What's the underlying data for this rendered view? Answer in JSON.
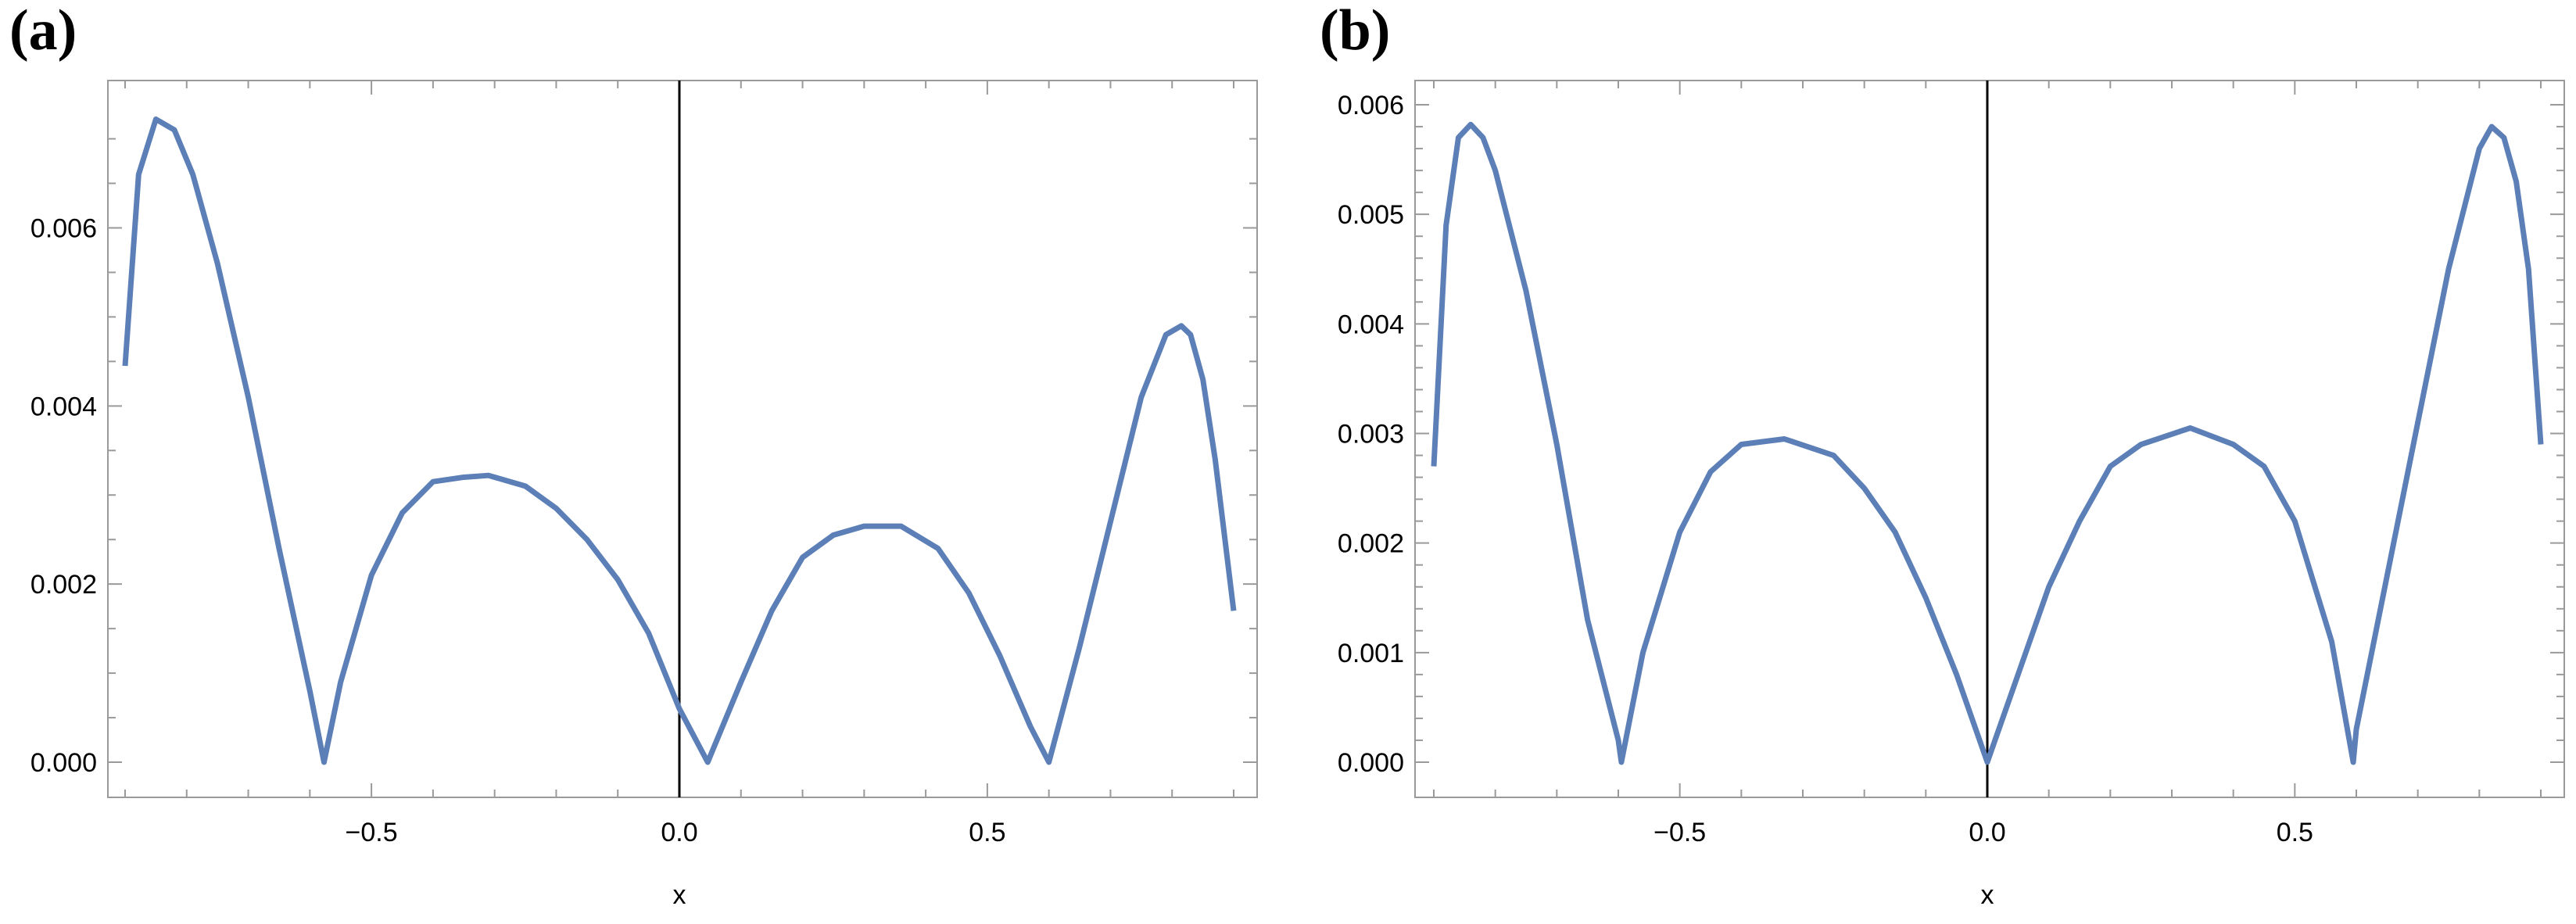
{
  "chart_data": [
    {
      "panel": "(a)",
      "type": "line",
      "xlabel": "x",
      "ylabel": "",
      "xlim": [
        -0.9,
        0.9
      ],
      "ylim": [
        0.0,
        0.0074
      ],
      "xticks": [
        -0.5,
        0.0,
        0.5
      ],
      "xtick_labels": [
        "−0.5",
        "0.0",
        "0.5"
      ],
      "yticks": [
        0.0,
        0.002,
        0.004,
        0.006
      ],
      "ytick_labels": [
        "0.000",
        "0.002",
        "0.004",
        "0.006"
      ],
      "grid": false,
      "color": "#5b7fb6",
      "series": [
        {
          "x": [
            -0.9,
            -0.878,
            -0.85,
            -0.82,
            -0.79,
            -0.75,
            -0.7,
            -0.65,
            -0.6,
            -0.577,
            -0.55,
            -0.5,
            -0.45,
            -0.4,
            -0.35,
            -0.31,
            -0.25,
            -0.2,
            -0.15,
            -0.1,
            -0.05,
            0.0,
            0.046,
            0.1,
            0.15,
            0.2,
            0.25,
            0.3,
            0.36,
            0.42,
            0.47,
            0.52,
            0.57,
            0.6,
            0.65,
            0.7,
            0.75,
            0.79,
            0.815,
            0.83,
            0.85,
            0.87,
            0.9
          ],
          "y": [
            0.00445,
            0.0066,
            0.00722,
            0.0071,
            0.0066,
            0.0056,
            0.0041,
            0.0024,
            0.0008,
            0.0,
            0.0009,
            0.0021,
            0.0028,
            0.00315,
            0.0032,
            0.00322,
            0.0031,
            0.00285,
            0.0025,
            0.00205,
            0.00145,
            0.0006,
            0.0,
            0.0009,
            0.0017,
            0.0023,
            0.00255,
            0.00265,
            0.00265,
            0.0024,
            0.0019,
            0.0012,
            0.0004,
            0.0,
            0.0013,
            0.0027,
            0.0041,
            0.0048,
            0.0049,
            0.0048,
            0.0043,
            0.0034,
            0.0017
          ]
        }
      ]
    },
    {
      "panel": "(b)",
      "type": "line",
      "xlabel": "x",
      "ylabel": "",
      "xlim": [
        -0.9,
        0.9
      ],
      "ylim": [
        0.0,
        0.0061
      ],
      "xticks": [
        -0.5,
        0.0,
        0.5
      ],
      "xtick_labels": [
        "−0.5",
        "0.0",
        "0.5"
      ],
      "yticks": [
        0.0,
        0.001,
        0.002,
        0.003,
        0.004,
        0.005,
        0.006
      ],
      "ytick_labels": [
        "0.000",
        "0.001",
        "0.002",
        "0.003",
        "0.004",
        "0.005",
        "0.006"
      ],
      "grid": false,
      "color": "#5b7fb6",
      "series": [
        {
          "x": [
            -0.9,
            -0.88,
            -0.86,
            -0.84,
            -0.82,
            -0.8,
            -0.75,
            -0.7,
            -0.65,
            -0.6,
            -0.595,
            -0.56,
            -0.5,
            -0.45,
            -0.4,
            -0.33,
            -0.25,
            -0.2,
            -0.15,
            -0.1,
            -0.05,
            0.0,
            0.05,
            0.1,
            0.15,
            0.2,
            0.25,
            0.33,
            0.4,
            0.45,
            0.5,
            0.56,
            0.595,
            0.6,
            0.65,
            0.7,
            0.75,
            0.8,
            0.82,
            0.84,
            0.86,
            0.88,
            0.9
          ],
          "y": [
            0.0027,
            0.0049,
            0.0057,
            0.00582,
            0.0057,
            0.0054,
            0.0043,
            0.0029,
            0.0013,
            0.0002,
            0.0,
            0.001,
            0.0021,
            0.00265,
            0.0029,
            0.00295,
            0.0028,
            0.0025,
            0.0021,
            0.0015,
            0.0008,
            0.0,
            0.0008,
            0.0016,
            0.0022,
            0.0027,
            0.0029,
            0.00305,
            0.0029,
            0.0027,
            0.0022,
            0.0011,
            0.0,
            0.0003,
            0.0017,
            0.0031,
            0.0045,
            0.0056,
            0.0058,
            0.0057,
            0.0053,
            0.0045,
            0.0029
          ]
        }
      ]
    }
  ]
}
